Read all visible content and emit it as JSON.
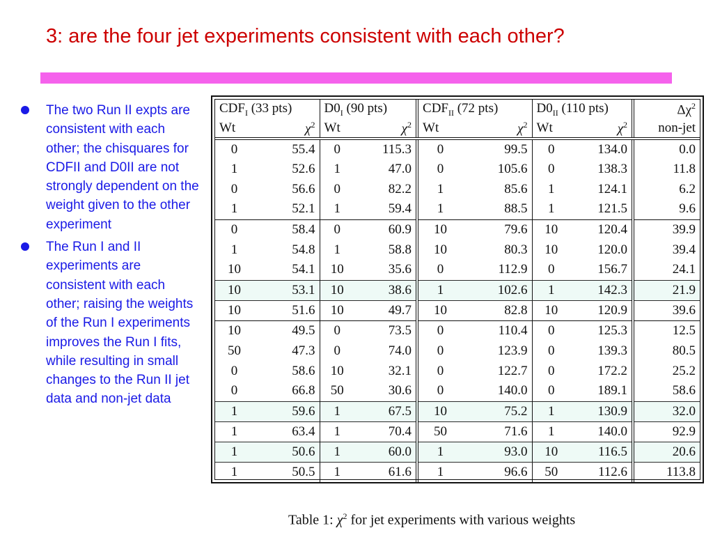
{
  "slide": {
    "title": "3: are the four jet experiments consistent with each other?",
    "accent_color": "#cc0000",
    "rule_color": "#f562ec",
    "bullet_color": "#1a1ae6"
  },
  "bullets": [
    "The two Run II expts are  consistent with each other; the chisquares for CDFII and D0II are not strongly dependent on the weight given to the other experiment",
    "The Run I and II experiments are consistent with each other; raising the weights of the Run I experiments improves the Run I fits, while resulting in small changes to the Run II jet data and non-jet data"
  ],
  "table": {
    "headers": {
      "cdf1": "CDF",
      "cdf1_sub": "I",
      "cdf1_pts": "(33 pts)",
      "d01": "D0",
      "d01_sub": "I",
      "d01_pts": "(90 pts)",
      "cdf2": "CDF",
      "cdf2_sub": "II",
      "cdf2_pts": "(72 pts)",
      "d02": "D0",
      "d02_sub": "II",
      "d02_pts": "(110 pts)",
      "delta": "Δχ",
      "delta_sup": "2"
    },
    "subheaders": {
      "wt": "Wt",
      "chi": "χ",
      "chi_sup": "2",
      "nonjet": "non-jet"
    },
    "rows": [
      [
        "0",
        "55.4",
        "0",
        "115.3",
        "0",
        "99.5",
        "0",
        "134.0",
        "0.0"
      ],
      [
        "1",
        "52.6",
        "1",
        "47.0",
        "0",
        "105.6",
        "0",
        "138.3",
        "11.8"
      ],
      [
        "0",
        "56.6",
        "0",
        "82.2",
        "1",
        "85.6",
        "1",
        "124.1",
        "6.2"
      ],
      [
        "1",
        "52.1",
        "1",
        "59.4",
        "1",
        "88.5",
        "1",
        "121.5",
        "9.6"
      ],
      [
        "0",
        "58.4",
        "0",
        "60.9",
        "10",
        "79.6",
        "10",
        "120.4",
        "39.9"
      ],
      [
        "1",
        "54.8",
        "1",
        "58.8",
        "10",
        "80.3",
        "10",
        "120.0",
        "39.4"
      ],
      [
        "10",
        "54.1",
        "10",
        "35.6",
        "0",
        "112.9",
        "0",
        "156.7",
        "24.1"
      ],
      [
        "10",
        "53.1",
        "10",
        "38.6",
        "1",
        "102.6",
        "1",
        "142.3",
        "21.9"
      ],
      [
        "10",
        "51.6",
        "10",
        "49.7",
        "10",
        "82.8",
        "10",
        "120.9",
        "39.6"
      ],
      [
        "10",
        "49.5",
        "0",
        "73.5",
        "0",
        "110.4",
        "0",
        "125.3",
        "12.5"
      ],
      [
        "50",
        "47.3",
        "0",
        "74.0",
        "0",
        "123.9",
        "0",
        "139.3",
        "80.5"
      ],
      [
        "0",
        "58.6",
        "10",
        "32.1",
        "0",
        "122.7",
        "0",
        "172.2",
        "25.2"
      ],
      [
        "0",
        "66.8",
        "50",
        "30.6",
        "0",
        "140.0",
        "0",
        "189.1",
        "58.6"
      ],
      [
        "1",
        "59.6",
        "1",
        "67.5",
        "10",
        "75.2",
        "1",
        "130.9",
        "32.0"
      ],
      [
        "1",
        "63.4",
        "1",
        "70.4",
        "50",
        "71.6",
        "1",
        "140.0",
        "92.9"
      ],
      [
        "1",
        "50.6",
        "1",
        "60.0",
        "1",
        "93.0",
        "10",
        "116.5",
        "20.6"
      ],
      [
        "1",
        "50.5",
        "1",
        "61.6",
        "1",
        "96.6",
        "50",
        "112.6",
        "113.8"
      ]
    ],
    "highlight_color": "#eefaf6"
  },
  "caption": {
    "prefix": "Table 1: ",
    "chi": "χ",
    "chi_sup": "2",
    "rest": " for jet experiments with various weights"
  }
}
